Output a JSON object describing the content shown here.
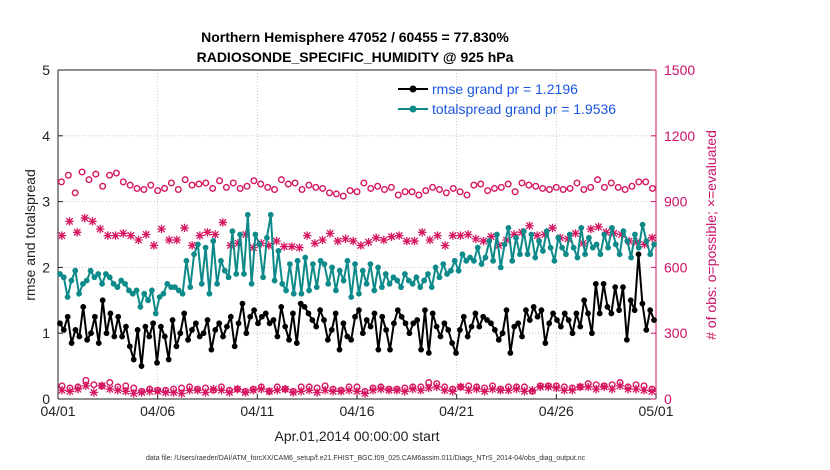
{
  "chart_data": {
    "type": "line",
    "title_line1": "Northern Hemisphere 47052 / 60455 = 77.830%",
    "title_line2": "RADIOSONDE_SPECIFIC_HUMIDITY @ 925 hPa",
    "xlabel": "Apr.01,2014 00:00:00 start",
    "ylabel_left": "rmse and totalspread",
    "ylabel_right": "# of obs: o=possible; ×=evaluated",
    "footer": "data file: /Users/raeder/DAI/ATM_forcXX/CAM6_setup/f.e21.FHIST_BGC.f09_025.CAM6assim.011/Diags_NTrS_2014-04/obs_diag_output.nc",
    "x_range": [
      0,
      30
    ],
    "ylim_left": [
      0,
      5
    ],
    "ylim_right": [
      0,
      1500
    ],
    "x_ticks": [
      {
        "value": 0,
        "label": "04/01"
      },
      {
        "value": 5,
        "label": "04/06"
      },
      {
        "value": 10,
        "label": "04/11"
      },
      {
        "value": 15,
        "label": "04/16"
      },
      {
        "value": 20,
        "label": "04/21"
      },
      {
        "value": 25,
        "label": "04/26"
      },
      {
        "value": 30,
        "label": "05/01"
      }
    ],
    "y_ticks_left": [
      "0",
      "1",
      "2",
      "3",
      "4",
      "5"
    ],
    "y_ticks_right": [
      "0",
      "300",
      "600",
      "900",
      "1200",
      "1500"
    ],
    "colors": {
      "rmse": "#000000",
      "spread": "#0e8a8a",
      "obs": "#d61660",
      "legend_text": "#1a55e0",
      "right_axis": "#cc1166"
    },
    "series": [
      {
        "name": "rmse grand pr = 1.2196",
        "key": "rmse",
        "values": [
          1.15,
          1.05,
          1.25,
          0.85,
          1.05,
          0.95,
          1.4,
          0.9,
          1.0,
          1.25,
          0.85,
          1.5,
          1.0,
          1.3,
          0.95,
          1.25,
          0.95,
          1.1,
          0.8,
          0.6,
          1.05,
          0.5,
          1.1,
          0.95,
          1.15,
          0.55,
          1.1,
          0.95,
          0.6,
          1.2,
          0.8,
          1.0,
          1.3,
          0.9,
          1.05,
          1.15,
          0.95,
          1.0,
          1.2,
          0.75,
          1.05,
          1.15,
          0.95,
          1.1,
          1.25,
          0.8,
          1.15,
          1.45,
          1.0,
          1.25,
          1.35,
          1.15,
          1.25,
          1.3,
          1.15,
          1.2,
          0.95,
          1.4,
          1.1,
          0.9,
          1.3,
          0.85,
          1.45,
          1.4,
          1.3,
          1.2,
          1.1,
          1.35,
          1.2,
          0.9,
          1.05,
          1.3,
          0.75,
          1.15,
          0.95,
          0.9,
          1.25,
          1.35,
          1.0,
          1.2,
          1.1,
          1.3,
          0.75,
          1.25,
          1.05,
          0.75,
          1.15,
          1.35,
          1.25,
          1.15,
          1.0,
          1.15,
          1.2,
          0.75,
          1.35,
          0.7,
          1.3,
          1.1,
          0.95,
          1.15,
          1.05,
          0.85,
          0.7,
          1.05,
          1.25,
          0.95,
          1.1,
          1.3,
          1.1,
          1.25,
          1.2,
          1.15,
          1.05,
          0.9,
          1.0,
          1.35,
          0.7,
          1.1,
          1.15,
          0.95,
          1.35,
          1.2,
          1.4,
          1.25,
          1.35,
          0.85,
          1.15,
          1.3,
          1.2,
          1.1,
          1.3,
          1.2,
          1.0,
          1.3,
          1.1,
          1.5,
          1.3,
          1.0,
          1.75,
          1.3,
          1.75,
          1.4,
          1.3,
          1.7,
          1.35,
          1.7,
          0.9,
          1.5,
          1.35,
          2.2,
          1.45,
          1.05,
          1.35,
          1.2
        ]
      },
      {
        "name": "totalspread grand pr = 1.9536",
        "key": "spread",
        "values": [
          1.9,
          1.85,
          1.55,
          1.8,
          1.95,
          1.6,
          1.75,
          1.8,
          1.95,
          1.85,
          1.9,
          1.75,
          1.9,
          1.85,
          1.75,
          1.7,
          1.8,
          1.75,
          1.65,
          1.6,
          1.65,
          1.4,
          1.6,
          1.5,
          1.65,
          1.3,
          1.55,
          1.6,
          1.75,
          1.7,
          1.7,
          1.65,
          1.6,
          2.1,
          1.7,
          2.2,
          2.35,
          1.75,
          2.3,
          1.6,
          2.4,
          1.75,
          2.1,
          1.95,
          1.85,
          2.55,
          1.9,
          2.5,
          1.9,
          2.8,
          1.75,
          2.5,
          2.35,
          1.85,
          2.45,
          2.8,
          1.8,
          2.25,
          1.75,
          1.65,
          2.05,
          1.6,
          2.1,
          1.6,
          2.15,
          1.65,
          2.05,
          1.7,
          2.1,
          2.05,
          1.75,
          2.0,
          1.65,
          1.95,
          1.8,
          2.1,
          1.55,
          2.05,
          1.6,
          1.95,
          1.75,
          2.05,
          1.65,
          2.0,
          1.7,
          1.9,
          1.75,
          1.85,
          1.8,
          1.7,
          1.9,
          1.8,
          1.75,
          1.85,
          1.7,
          1.8,
          1.9,
          1.7,
          2.0,
          1.85,
          2.05,
          1.9,
          1.95,
          2.1,
          1.95,
          2.2,
          2.1,
          2.15,
          2.1,
          2.3,
          2.05,
          2.15,
          2.4,
          2.1,
          2.5,
          2.0,
          2.35,
          2.6,
          2.1,
          2.45,
          2.2,
          2.55,
          2.2,
          2.5,
          2.15,
          2.4,
          2.25,
          2.55,
          2.3,
          2.1,
          2.45,
          2.3,
          2.2,
          2.5,
          2.3,
          2.15,
          2.6,
          2.2,
          2.45,
          2.3,
          2.35,
          2.2,
          2.5,
          2.3,
          2.6,
          2.35,
          2.2,
          2.55,
          2.4,
          2.15,
          2.5,
          2.3,
          2.65,
          2.4,
          2.2,
          2.35
        ]
      },
      {
        "name": "obs possible",
        "key": "possible",
        "values": [
          990,
          1020,
          940,
          1035,
          1000,
          1025,
          970,
          1020,
          1030,
          990,
          975,
          960,
          955,
          975,
          950,
          960,
          985,
          955,
          1000,
          975,
          980,
          985,
          960,
          995,
          965,
          985,
          960,
          970,
          995,
          980,
          965,
          955,
          1000,
          980,
          985,
          955,
          975,
          965,
          960,
          940,
          935,
          925,
          950,
          945,
          985,
          960,
          970,
          955,
          965,
          930,
          945,
          945,
          930,
          950,
          965,
          955,
          940,
          960,
          945,
          930,
          975,
          980,
          950,
          960,
          965,
          980,
          945,
          985,
          975,
          970,
          960,
          955,
          965,
          955,
          960,
          985,
          955,
          965,
          1000,
          965,
          985,
          965,
          955,
          970,
          990,
          990,
          960
        ]
      },
      {
        "name": "obs evaluated",
        "key": "evaluated",
        "values": [
          745,
          810,
          760,
          825,
          810,
          775,
          745,
          745,
          755,
          745,
          725,
          750,
          700,
          775,
          725,
          725,
          780,
          700,
          745,
          760,
          750,
          805,
          700,
          710,
          750,
          690,
          710,
          700,
          720,
          695,
          695,
          690,
          745,
          710,
          725,
          755,
          720,
          730,
          720,
          700,
          715,
          735,
          725,
          740,
          745,
          720,
          720,
          760,
          725,
          745,
          700,
          745,
          745,
          750,
          730,
          720,
          740,
          700,
          725,
          750,
          760,
          790,
          745,
          750,
          780,
          735,
          730,
          755,
          710,
          775,
          785,
          760,
          755,
          750,
          720,
          715,
          705,
          735
        ]
      },
      {
        "name": "obs possible low",
        "key": "possible_low",
        "values": [
          60,
          50,
          55,
          85,
          65,
          60,
          75,
          55,
          60,
          50,
          35,
          45,
          40,
          40,
          45,
          50,
          55,
          45,
          50,
          40,
          55,
          40,
          45,
          35,
          45,
          55,
          35,
          55,
          45,
          35,
          55,
          55,
          50,
          60,
          45,
          40,
          55,
          55,
          35,
          50,
          55,
          45,
          45,
          50,
          55,
          55,
          75,
          70,
          55,
          45,
          55,
          60,
          55,
          50,
          60,
          45,
          55,
          55,
          55,
          35,
          60,
          60,
          60,
          55,
          50,
          55,
          70,
          65,
          60,
          65,
          75,
          55,
          65,
          60,
          45
        ]
      },
      {
        "name": "obs evaluated low",
        "key": "evaluated_low",
        "values": [
          40,
          35,
          45,
          60,
          30,
          60,
          45,
          40,
          35,
          25,
          30,
          35,
          35,
          30,
          30,
          25,
          40,
          40,
          30,
          45,
          40,
          30,
          45,
          30,
          40,
          45,
          35,
          40,
          45,
          30,
          35,
          40,
          30,
          40,
          35,
          35,
          40,
          35,
          25,
          40,
          45,
          40,
          40,
          35,
          45,
          40,
          50,
          55,
          40,
          35,
          55,
          40,
          45,
          35,
          45,
          40,
          40,
          45,
          35,
          40,
          55,
          55,
          50,
          40,
          40,
          55,
          55,
          45,
          55,
          45,
          60,
          45,
          45,
          40,
          35
        ]
      }
    ]
  }
}
